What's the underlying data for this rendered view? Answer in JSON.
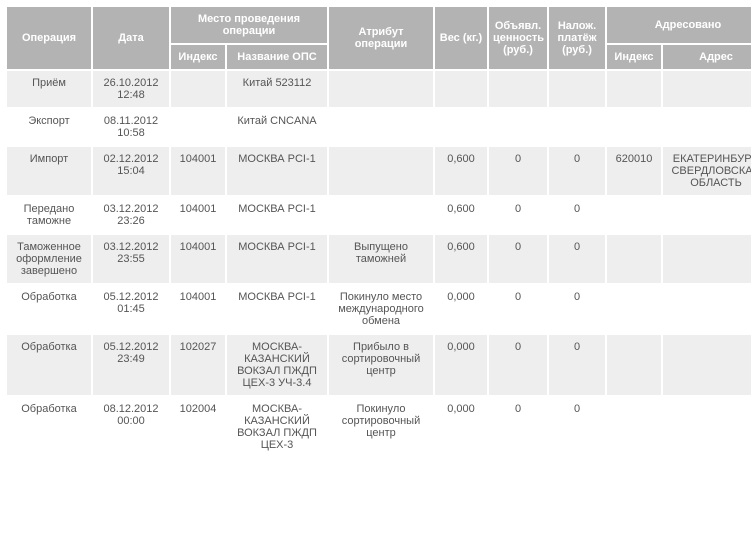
{
  "headers": {
    "operation": "Операция",
    "date": "Дата",
    "place_group": "Место проведения операции",
    "index": "Индекс",
    "ops_name": "Название ОПС",
    "attribute": "Атрибут операции",
    "weight": "Вес (кг.)",
    "declared_value": "Объявл. ценность (руб.)",
    "cod_payment": "Налож. платёж (руб.)",
    "addressed_group": "Адресовано",
    "addr_index": "Индекс",
    "addr_address": "Адрес"
  },
  "rows": [
    {
      "op": "Приём",
      "date": "26.10.2012 12:48",
      "idx": "",
      "ops": "Китай 523112",
      "attr": "",
      "weight": "",
      "val": "",
      "pay": "",
      "aidx": "",
      "addr": ""
    },
    {
      "op": "Экспорт",
      "date": "08.11.2012 10:58",
      "idx": "",
      "ops": "Китай CNCANA",
      "attr": "",
      "weight": "",
      "val": "",
      "pay": "",
      "aidx": "",
      "addr": ""
    },
    {
      "op": "Импорт",
      "date": "02.12.2012 15:04",
      "idx": "104001",
      "ops": "МОСКВА PCI-1",
      "attr": "",
      "weight": "0,600",
      "val": "0",
      "pay": "0",
      "aidx": "620010",
      "addr": "ЕКАТЕРИНБУРГ, СВЕРДЛОВСКАЯ ОБЛАСТЬ"
    },
    {
      "op": "Передано таможне",
      "date": "03.12.2012 23:26",
      "idx": "104001",
      "ops": "МОСКВА PCI-1",
      "attr": "",
      "weight": "0,600",
      "val": "0",
      "pay": "0",
      "aidx": "",
      "addr": ""
    },
    {
      "op": "Таможенное оформление завершено",
      "date": "03.12.2012 23:55",
      "idx": "104001",
      "ops": "МОСКВА PCI-1",
      "attr": "Выпущено таможней",
      "weight": "0,600",
      "val": "0",
      "pay": "0",
      "aidx": "",
      "addr": ""
    },
    {
      "op": "Обработка",
      "date": "05.12.2012 01:45",
      "idx": "104001",
      "ops": "МОСКВА PCI-1",
      "attr": "Покинуло место международного обмена",
      "weight": "0,000",
      "val": "0",
      "pay": "0",
      "aidx": "",
      "addr": ""
    },
    {
      "op": "Обработка",
      "date": "05.12.2012 23:49",
      "idx": "102027",
      "ops": "МОСКВА-КАЗАНСКИЙ ВОКЗАЛ ПЖДП ЦЕХ-3 УЧ-3.4",
      "attr": "Прибыло в сортировочный центр",
      "weight": "0,000",
      "val": "0",
      "pay": "0",
      "aidx": "",
      "addr": ""
    },
    {
      "op": "Обработка",
      "date": "08.12.2012 00:00",
      "idx": "102004",
      "ops": "МОСКВА-КАЗАНСКИЙ ВОКЗАЛ ПЖДП ЦЕХ-3",
      "attr": "Покинуло сортировочный центр",
      "weight": "0,000",
      "val": "0",
      "pay": "0",
      "aidx": "",
      "addr": ""
    }
  ]
}
